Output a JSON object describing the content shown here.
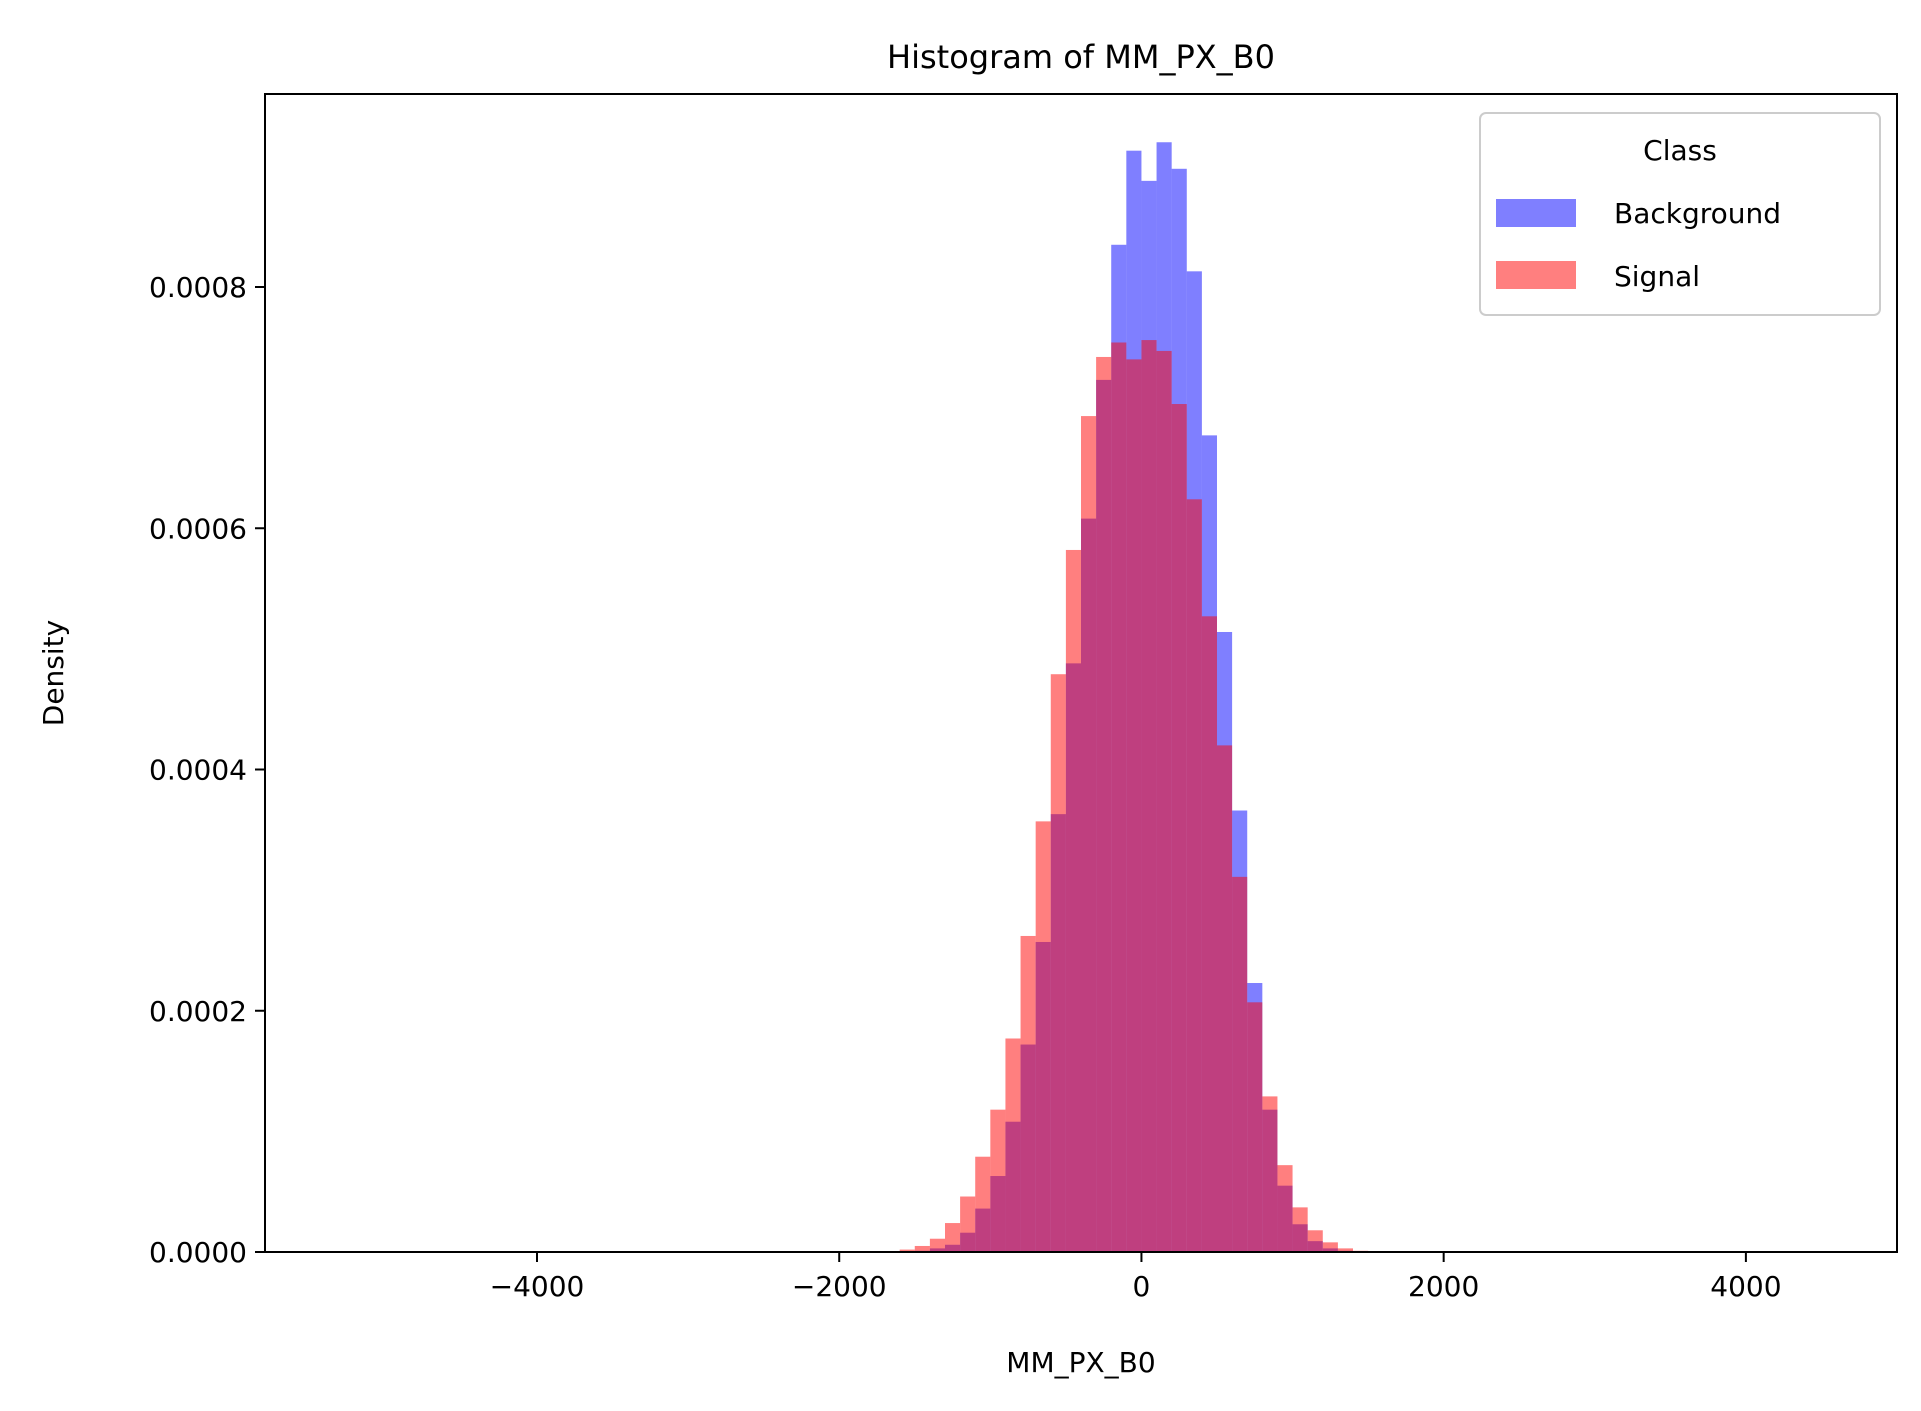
{
  "chart_data": {
    "type": "bar",
    "title": "Histogram of MM_PX_B0",
    "xlabel": "MM_PX_B0",
    "ylabel": "Density",
    "xlim": [
      -5800,
      5000
    ],
    "ylim": [
      0,
      0.00096
    ],
    "xticks": [
      -4000,
      -2000,
      0,
      2000,
      4000
    ],
    "xtick_labels": [
      "−4000",
      "−2000",
      "0",
      "2000",
      "4000"
    ],
    "yticks": [
      0,
      0.0002,
      0.0004,
      0.0006,
      0.0008
    ],
    "ytick_labels": [
      "0.0000",
      "0.0002",
      "0.0004",
      "0.0006",
      "0.0008"
    ],
    "grid": false,
    "legend": {
      "title": "Class",
      "placement": "top-right"
    },
    "series": [
      {
        "name": "Background",
        "color": "#0000ff",
        "opacity": 0.5,
        "bins": [
          [
            -1500,
            1e-06
          ],
          [
            -1400,
            3e-06
          ],
          [
            -1300,
            6e-06
          ],
          [
            -1200,
            1.6e-05
          ],
          [
            -1100,
            3.6e-05
          ],
          [
            -1000,
            6.3e-05
          ],
          [
            -900,
            0.000108
          ],
          [
            -800,
            0.000172
          ],
          [
            -700,
            0.000257
          ],
          [
            -600,
            0.000363
          ],
          [
            -500,
            0.000488
          ],
          [
            -400,
            0.000608
          ],
          [
            -300,
            0.000723
          ],
          [
            -200,
            0.000835
          ],
          [
            -100,
            0.000913
          ],
          [
            0,
            0.000888
          ],
          [
            100,
            0.00092
          ],
          [
            200,
            0.000898
          ],
          [
            300,
            0.000813
          ],
          [
            400,
            0.000677
          ],
          [
            500,
            0.000514
          ],
          [
            600,
            0.000366
          ],
          [
            700,
            0.000223
          ],
          [
            800,
            0.000118
          ],
          [
            900,
            5.5e-05
          ],
          [
            1000,
            2.3e-05
          ],
          [
            1100,
            9e-06
          ],
          [
            1200,
            3e-06
          ],
          [
            1300,
            1e-06
          ]
        ],
        "bin_width": 100
      },
      {
        "name": "Signal",
        "color": "#ff0000",
        "opacity": 0.5,
        "bins": [
          [
            -1600,
            2e-06
          ],
          [
            -1500,
            5e-06
          ],
          [
            -1400,
            1.1e-05
          ],
          [
            -1300,
            2.4e-05
          ],
          [
            -1200,
            4.6e-05
          ],
          [
            -1100,
            7.9e-05
          ],
          [
            -1000,
            0.000118
          ],
          [
            -900,
            0.000177
          ],
          [
            -800,
            0.000262
          ],
          [
            -700,
            0.000357
          ],
          [
            -600,
            0.000479
          ],
          [
            -500,
            0.000582
          ],
          [
            -400,
            0.000693
          ],
          [
            -300,
            0.000742
          ],
          [
            -200,
            0.000754
          ],
          [
            -100,
            0.00074
          ],
          [
            0,
            0.000756
          ],
          [
            100,
            0.000747
          ],
          [
            200,
            0.000703
          ],
          [
            300,
            0.000624
          ],
          [
            400,
            0.000527
          ],
          [
            500,
            0.00042
          ],
          [
            600,
            0.000311
          ],
          [
            700,
            0.000207
          ],
          [
            800,
            0.000129
          ],
          [
            900,
            7.2e-05
          ],
          [
            1000,
            3.7e-05
          ],
          [
            1100,
            1.8e-05
          ],
          [
            1200,
            8e-06
          ],
          [
            1300,
            3e-06
          ],
          [
            1400,
            1e-06
          ]
        ],
        "bin_width": 100
      }
    ]
  }
}
